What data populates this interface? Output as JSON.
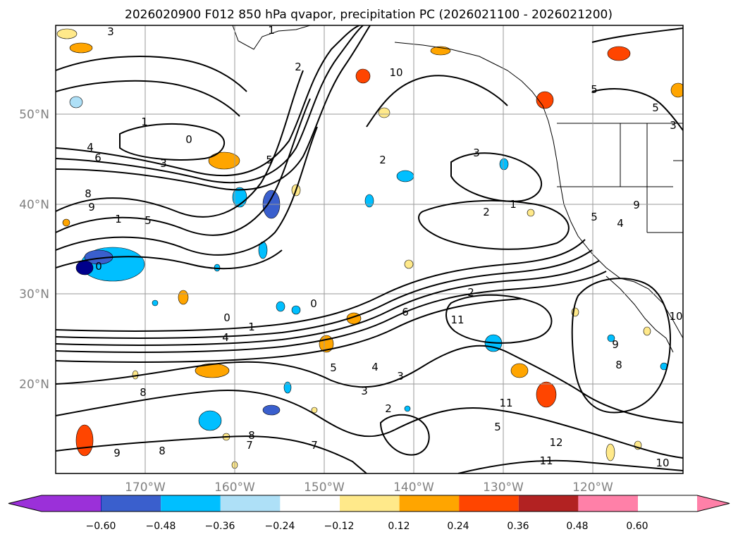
{
  "chart_data": {
    "type": "contour",
    "title": "2026020900 F012 850 hPa qvapor, precipitation PC (2026021100 - 2026021200)",
    "lat_ticks": [
      "50°N",
      "40°N",
      "30°N",
      "20°N"
    ],
    "lon_ticks": [
      "170°W",
      "160°W",
      "150°W",
      "140°W",
      "130°W",
      "120°W"
    ],
    "lat_values": [
      50,
      40,
      30,
      20
    ],
    "lon_values": [
      -170,
      -160,
      -150,
      -140,
      -130,
      -120
    ],
    "grid": true,
    "colorbar": {
      "orientation": "horizontal",
      "extend": "both",
      "ticks": [
        "−0.60",
        "−0.48",
        "−0.36",
        "−0.24",
        "−0.12",
        "0.12",
        "0.24",
        "0.36",
        "0.48",
        "0.60"
      ],
      "colors": [
        "#9b30d9",
        "#00008b",
        "#3a5fcd",
        "#00bfff",
        "#aee0f7",
        "#ffffff",
        "#ffe98a",
        "#ffa500",
        "#ff4500",
        "#b22222",
        "#ff80a8"
      ]
    },
    "contour_labels": [
      "3",
      "1",
      "2",
      "2",
      "1",
      "0",
      "4",
      "6",
      "3",
      "5",
      "2",
      "3",
      "8",
      "9",
      "1",
      "5",
      "2",
      "1",
      "5",
      "4",
      "0",
      "0",
      "4",
      "0",
      "1",
      "4",
      "5",
      "2",
      "3",
      "3",
      "5",
      "8",
      "8",
      "7",
      "8",
      "7",
      "9",
      "11",
      "12",
      "10",
      "11",
      "9",
      "8",
      "9",
      "10",
      "11",
      "10",
      "5",
      "5",
      "3",
      "6"
    ]
  }
}
